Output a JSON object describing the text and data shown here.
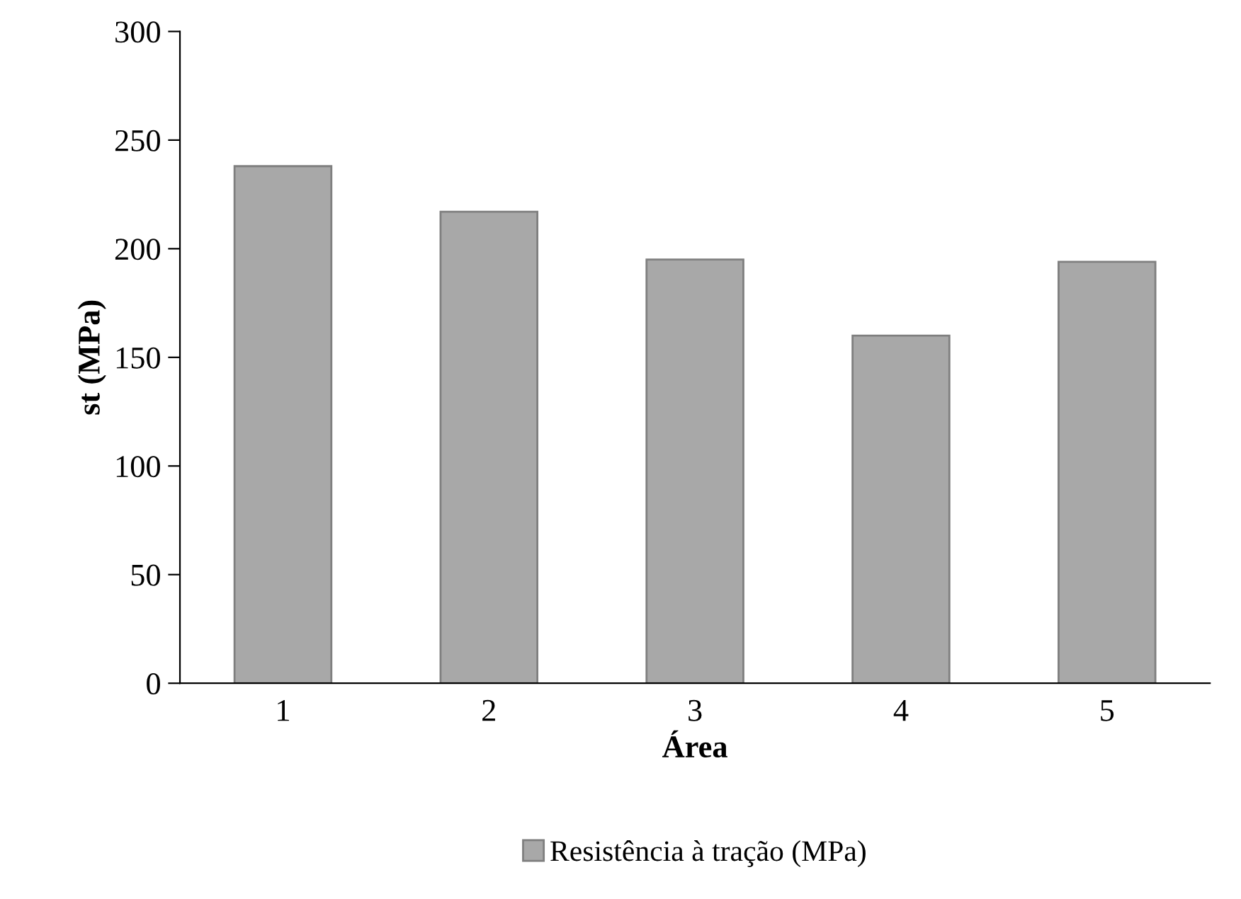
{
  "chart_data": {
    "type": "bar",
    "xlabel": "Área",
    "ylabel": "st (MPa)",
    "categories": [
      "1",
      "2",
      "3",
      "4",
      "5"
    ],
    "series": [
      {
        "name": "Resistência à tração (MPa)",
        "color": "#a8a8a8",
        "values": [
          238,
          217,
          195,
          160,
          194
        ]
      }
    ],
    "ylim": [
      0,
      300
    ],
    "yticks": [
      0,
      50,
      100,
      150,
      200,
      250,
      300
    ],
    "grid": false,
    "legend": "bottom"
  }
}
